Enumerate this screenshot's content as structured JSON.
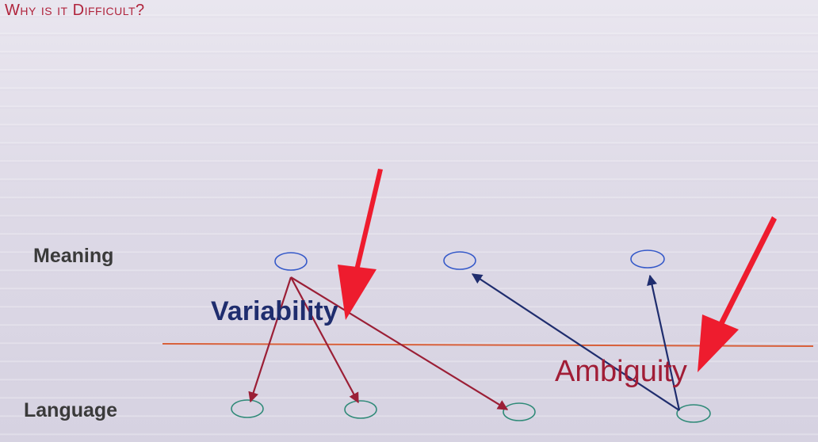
{
  "slide": {
    "title": "Why is it Difficult?"
  },
  "diagram": {
    "rows": {
      "meaning": "Meaning",
      "language": "Language"
    },
    "callouts": {
      "variability": "Variability",
      "ambiguity": "Ambiguity"
    },
    "colors": {
      "title": "#b0243c",
      "variability_arrows": "#9b1f36",
      "ambiguity_arrows": "#1f2d6e",
      "divider": "#d8603a",
      "meaning_nodes": "#3559c9",
      "language_nodes": "#2f8a78",
      "pointer_arrows": "#ee1c2e"
    }
  }
}
